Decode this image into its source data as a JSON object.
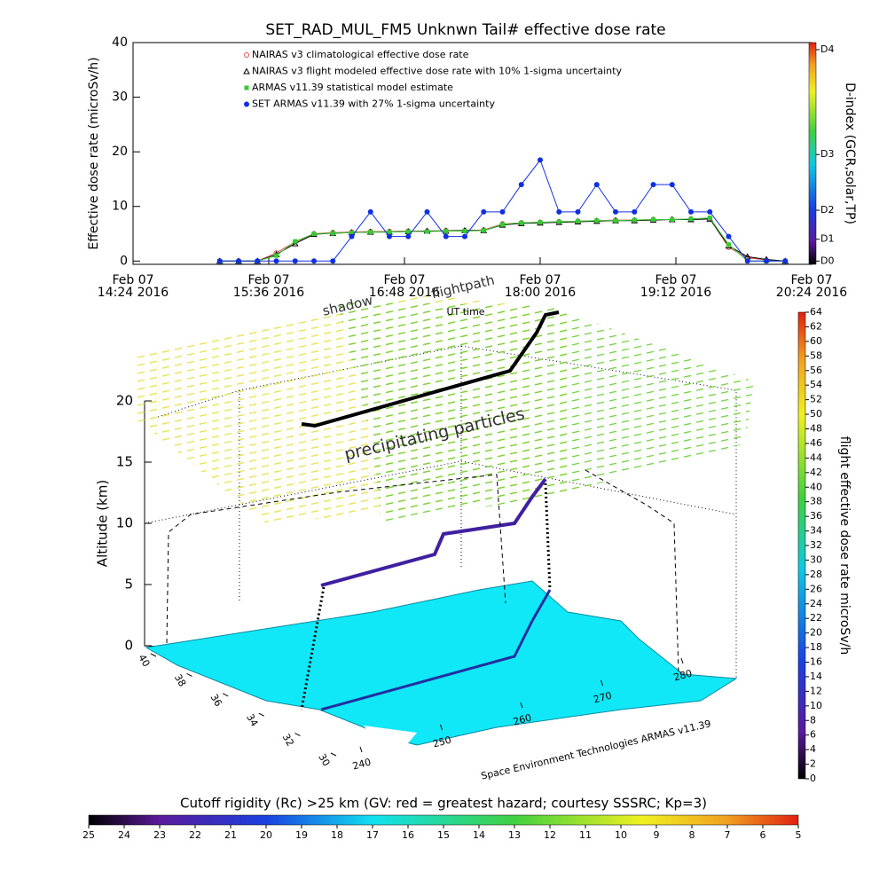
{
  "chart_data": [
    {
      "type": "line",
      "title": "SET_RAD_MUL_FM5 Unknwn Tail#  effective dose rate",
      "ylabel": "Effective dose rate (microSv/h)",
      "xlabel": "UT time",
      "y2label": "D-index (GCR,solar,TP)",
      "xlim": [
        "2016-02-07T14:24",
        "2016-02-07T20:24"
      ],
      "xticks": [
        {
          "value": "2016-02-07T14:24",
          "label": [
            "Feb 07",
            "14:24 2016"
          ]
        },
        {
          "value": "2016-02-07T15:36",
          "label": [
            "Feb 07",
            "15:36 2016"
          ]
        },
        {
          "value": "2016-02-07T16:48",
          "label": [
            "Feb 07",
            "16:48 2016"
          ]
        },
        {
          "value": "2016-02-07T18:00",
          "label": [
            "Feb 07",
            "18:00 2016"
          ]
        },
        {
          "value": "2016-02-07T19:12",
          "label": [
            "Feb 07",
            "19:12 2016"
          ]
        },
        {
          "value": "2016-02-07T20:24",
          "label": [
            "Feb 07",
            "20:24 2016"
          ]
        }
      ],
      "ylim": [
        -0.6,
        40
      ],
      "yticks": [
        0,
        10,
        20,
        30,
        40
      ],
      "y2lim": [
        -0.6,
        40
      ],
      "y2ticks": [
        {
          "value": 0,
          "label": "D0"
        },
        {
          "value": 4,
          "label": "D1"
        },
        {
          "value": 9.3,
          "label": "D2"
        },
        {
          "value": 19.5,
          "label": "D3"
        },
        {
          "value": 38.7,
          "label": "D4"
        }
      ],
      "x": [
        "2016-02-07T15:10",
        "2016-02-07T15:20",
        "2016-02-07T15:30",
        "2016-02-07T15:40",
        "2016-02-07T15:50",
        "2016-02-07T16:00",
        "2016-02-07T16:10",
        "2016-02-07T16:20",
        "2016-02-07T16:30",
        "2016-02-07T16:40",
        "2016-02-07T16:50",
        "2016-02-07T17:00",
        "2016-02-07T17:10",
        "2016-02-07T17:20",
        "2016-02-07T17:30",
        "2016-02-07T17:40",
        "2016-02-07T17:50",
        "2016-02-07T18:00",
        "2016-02-07T18:10",
        "2016-02-07T18:20",
        "2016-02-07T18:30",
        "2016-02-07T18:40",
        "2016-02-07T18:50",
        "2016-02-07T19:00",
        "2016-02-07T19:10",
        "2016-02-07T19:20",
        "2016-02-07T19:30",
        "2016-02-07T19:40",
        "2016-02-07T19:50",
        "2016-02-07T20:00",
        "2016-02-07T20:10"
      ],
      "series": [
        {
          "name": "NAIRAS v3 climatological effective dose rate",
          "color": "#e05050",
          "marker": "circle",
          "values": [
            0,
            0,
            0,
            1.5,
            3.5,
            5,
            5.2,
            5.3,
            5.4,
            5.4,
            5.5,
            5.5,
            5.6,
            5.6,
            5.7,
            6.8,
            7,
            7.1,
            7.2,
            7.3,
            7.4,
            7.5,
            7.5,
            7.6,
            7.6,
            7.7,
            7.8,
            2.5,
            0.6,
            0.2,
            0
          ]
        },
        {
          "name": "NAIRAS v3 flight modeled effective dose rate with 10% 1-sigma uncertainty",
          "color": "#000000",
          "marker": "triangle",
          "values": [
            0,
            0,
            0,
            1.2,
            3.2,
            4.9,
            5.1,
            5.2,
            5.3,
            5.3,
            5.4,
            5.5,
            5.5,
            5.6,
            5.6,
            6.6,
            6.9,
            7,
            7.1,
            7.2,
            7.3,
            7.4,
            7.4,
            7.5,
            7.6,
            7.6,
            7.7,
            2.8,
            0.8,
            0.3,
            0
          ]
        },
        {
          "name": "ARMAS v11.39 statistical model estimate",
          "color": "#33cc33",
          "marker": "square",
          "values": [
            0,
            0,
            0,
            1,
            3.6,
            5,
            5.1,
            5.2,
            5.3,
            5.3,
            5.4,
            5.4,
            5.5,
            5.5,
            5.6,
            6.7,
            7,
            7.1,
            7.2,
            7.3,
            7.4,
            7.4,
            7.5,
            7.6,
            7.6,
            7.7,
            7.9,
            3,
            0,
            0,
            0
          ]
        },
        {
          "name": "SET ARMAS v11.39 with 27% 1-sigma uncertainty",
          "color": "#1030e0",
          "marker": "dot",
          "values": [
            0,
            0,
            0,
            0,
            0,
            0,
            0,
            4.5,
            9,
            4.5,
            4.5,
            9,
            4.5,
            4.5,
            9,
            9,
            14,
            18.5,
            9,
            9,
            14,
            9,
            9,
            14,
            14,
            9,
            9,
            4.5,
            0,
            0,
            0
          ]
        }
      ]
    },
    {
      "type": "surface3d",
      "zlabel": "Altitude (km)",
      "zlim": [
        0,
        20
      ],
      "zticks": [
        0,
        5,
        10,
        15,
        20
      ],
      "xlim": [
        40,
        30
      ],
      "xticks": [
        40,
        38,
        36,
        34,
        32,
        30
      ],
      "ylim": [
        240,
        280
      ],
      "yticks": [
        240,
        250,
        260,
        270,
        280
      ],
      "annotations": [
        "shadow",
        "flightpath",
        "precipitating particles"
      ],
      "credit": "Space Environment Technologies ARMAS v11.39",
      "colorbar": {
        "label": "flight effective dose rate microSv/h",
        "lim": [
          0,
          64
        ],
        "ticks": [
          0,
          2,
          4,
          6,
          8,
          10,
          12,
          14,
          16,
          18,
          20,
          22,
          24,
          26,
          28,
          30,
          32,
          34,
          36,
          38,
          40,
          42,
          44,
          46,
          48,
          50,
          52,
          54,
          56,
          58,
          60,
          62,
          64
        ]
      },
      "rigidity_colorbar": {
        "title": "Cutoff rigidity (Rc) >25 km (GV: red = greatest hazard; courtesy SSSRC; Kp=3)",
        "lim": [
          25,
          5
        ],
        "ticks": [
          25,
          24,
          23,
          22,
          21,
          20,
          19,
          18,
          17,
          16,
          15,
          14,
          13,
          12,
          11,
          10,
          9,
          8,
          7,
          6,
          5
        ]
      }
    }
  ]
}
